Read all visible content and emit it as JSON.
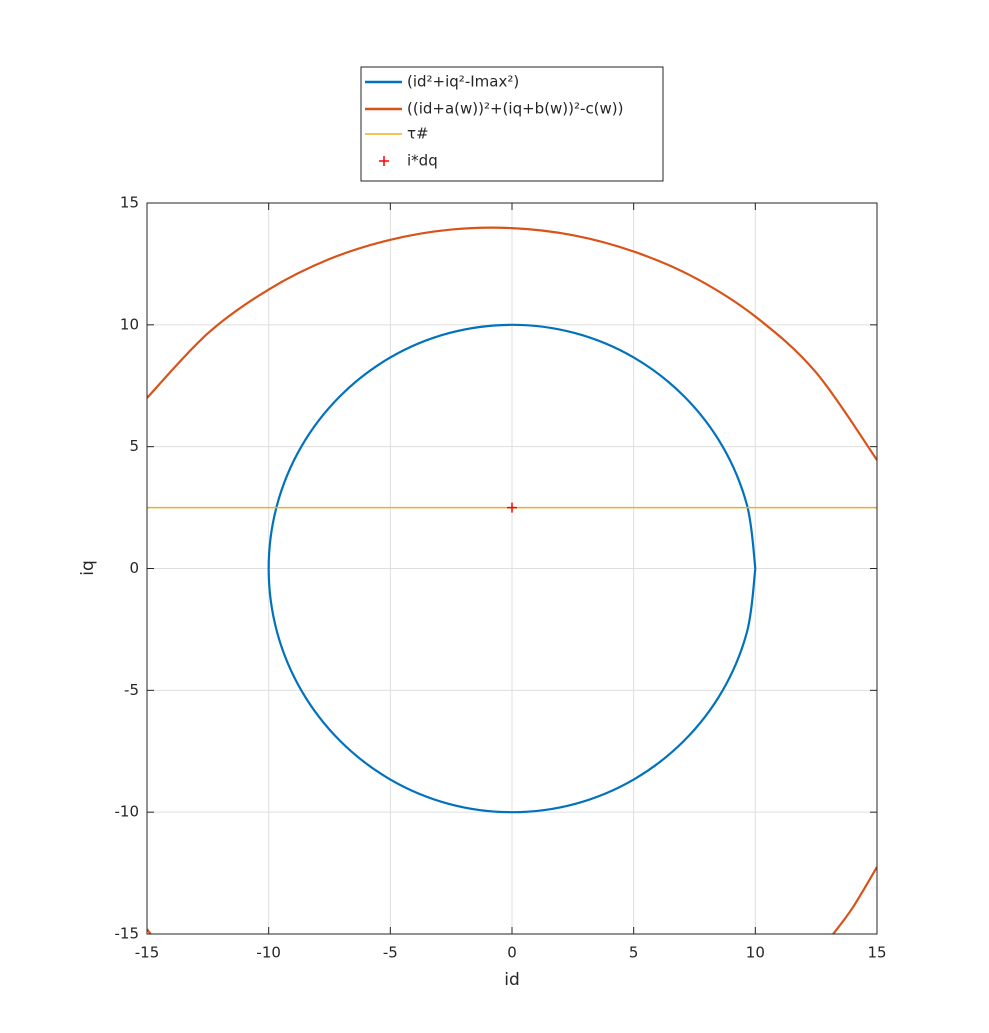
{
  "chart_data": {
    "type": "line",
    "xlabel": "id",
    "ylabel": "iq",
    "xlim": [
      -15,
      15
    ],
    "ylim": [
      -15,
      15
    ],
    "xticks": [
      -15,
      -10,
      -5,
      0,
      5,
      10,
      15
    ],
    "yticks": [
      -15,
      -10,
      -5,
      0,
      5,
      10,
      15
    ],
    "grid": true,
    "legend": "top",
    "series": [
      {
        "name": "(id²+iq²-Imax²)",
        "color": "#0072bd",
        "x": [
          10,
          9.66,
          8.66,
          7.07,
          5,
          2.59,
          0,
          -2.59,
          -5,
          -7.07,
          -8.66,
          -9.66,
          -10,
          -9.66,
          -8.66,
          -7.07,
          -5,
          -2.59,
          0,
          2.59,
          5,
          7.07,
          8.66,
          9.66,
          10
        ],
        "values": [
          0,
          2.59,
          5,
          7.07,
          8.66,
          9.66,
          10,
          9.66,
          8.66,
          7.07,
          5,
          2.59,
          0,
          -2.59,
          -5,
          -7.07,
          -8.66,
          -9.66,
          -10,
          -9.66,
          -8.66,
          -7.07,
          -5,
          -2.59,
          0
        ]
      },
      {
        "name": "((id+a(w))²+(iq+b(w))²-c(w))",
        "color": "#d95319",
        "x": [
          -15,
          -12.5,
          -10,
          -7.5,
          -5,
          -2.5,
          0,
          2.5,
          5,
          7.5,
          10,
          12.5,
          15,
          null,
          -15,
          -14.85,
          null,
          13.2,
          14,
          15
        ],
        "values": [
          7.0,
          9.65,
          11.45,
          12.7,
          13.49,
          13.91,
          13.97,
          13.68,
          13.01,
          11.94,
          10.34,
          8.04,
          4.45,
          null,
          -14.8,
          -15,
          null,
          -15,
          -13.92,
          -12.25
        ]
      },
      {
        "name": "τ#",
        "color": "#edb120",
        "x": [
          -15,
          15
        ],
        "values": [
          2.5,
          2.5
        ]
      },
      {
        "name": "i*dq",
        "color": "#ff0000",
        "marker": "+",
        "x": [
          0
        ],
        "values": [
          2.5
        ]
      }
    ]
  }
}
